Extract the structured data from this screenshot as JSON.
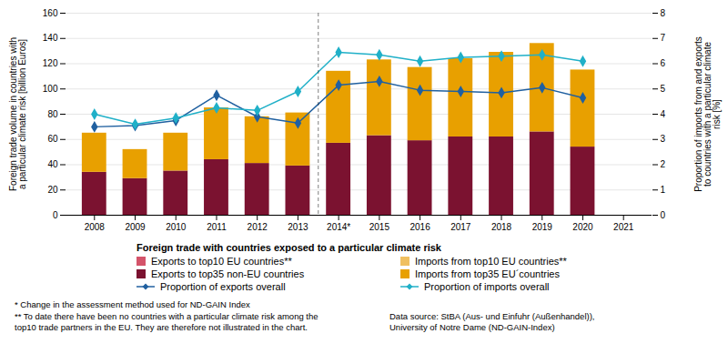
{
  "chart_data": {
    "type": "bar",
    "stacked": true,
    "grid": true,
    "categories": [
      "2008",
      "2009",
      "2010",
      "2011",
      "2012",
      "2013",
      "2014*",
      "2015",
      "2016",
      "2017",
      "2018",
      "2019",
      "2020",
      "2021"
    ],
    "ylabel": "Foreign trade volume in countries with\na particular climate risk [billion Euros]",
    "y2label": "Proportion of imports from and exports\nto countries with a particular climate\nrisk [%]",
    "ylim": [
      0,
      160
    ],
    "yticks": [
      0,
      20,
      40,
      60,
      80,
      100,
      120,
      140,
      160
    ],
    "y2lim": [
      0,
      8
    ],
    "y2ticks": [
      0,
      1,
      2,
      3,
      4,
      5,
      6,
      7,
      8
    ],
    "legend_title": "Foreign trade with countries exposed to a particular climate risk",
    "series": [
      {
        "name": "Exports to top10 EU countries**",
        "type": "bar",
        "color": "#D4546A",
        "values": [
          null,
          null,
          null,
          null,
          null,
          null,
          null,
          null,
          null,
          null,
          null,
          null,
          null,
          null
        ]
      },
      {
        "name": "Imports from top10 EU countries**",
        "type": "bar",
        "color": "#F0C060",
        "values": [
          null,
          null,
          null,
          null,
          null,
          null,
          null,
          null,
          null,
          null,
          null,
          null,
          null,
          null
        ]
      },
      {
        "name": "Exports to top35 non-EU countries",
        "type": "bar",
        "color": "#7B1230",
        "values": [
          34,
          29,
          35,
          44,
          41,
          39,
          57,
          63,
          59,
          62,
          62,
          66,
          54,
          null
        ]
      },
      {
        "name": "Imports from top35 EU´countries",
        "type": "bar",
        "color": "#E8A000",
        "values": [
          31,
          23,
          30,
          41,
          37,
          42,
          57,
          60,
          58,
          62,
          67,
          70,
          61,
          null
        ]
      },
      {
        "name": "Proportion of exports overall",
        "type": "line",
        "marker": "diamond",
        "axis": "y2",
        "color": "#2060A0",
        "values": [
          3.5,
          3.55,
          3.75,
          4.75,
          3.9,
          3.65,
          5.15,
          5.3,
          4.95,
          4.9,
          4.85,
          5.05,
          4.65,
          null
        ]
      },
      {
        "name": "Proportion of imports overall",
        "type": "line",
        "marker": "diamond",
        "axis": "y2",
        "color": "#20B0C8",
        "values": [
          4.0,
          3.6,
          3.85,
          4.25,
          4.15,
          4.9,
          6.45,
          6.35,
          6.1,
          6.25,
          6.3,
          6.35,
          6.1,
          null
        ]
      }
    ],
    "annotations": [
      {
        "x": [
          "2013",
          "2014*"
        ],
        "line_style": "dashed"
      },
      {
        "text": "* Change in the assessment method used for ND-GAIN Index"
      },
      {
        "text": "** To date there have been no countries with a particular climate risk among the\ntop10 trade partners in the EU. They are therefore not illustrated in the chart."
      },
      {
        "text": "Data source: StBA (Aus- und Einfuhr (Außenhandel)),\nUniversity of Notre Dame (ND-GAIN-Index)"
      }
    ]
  }
}
